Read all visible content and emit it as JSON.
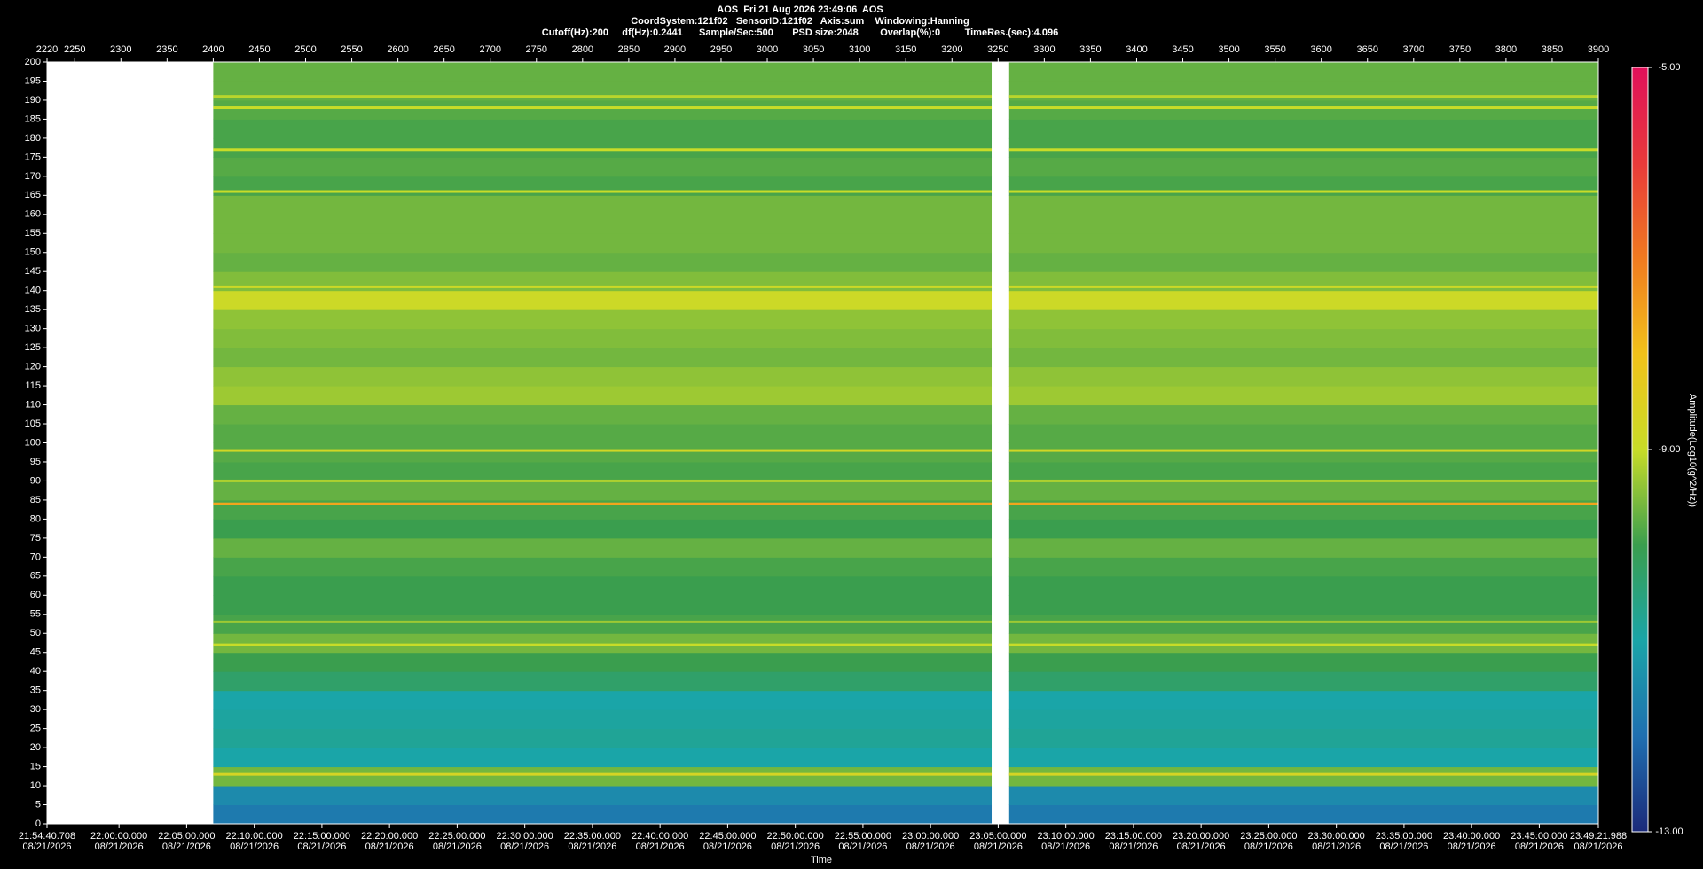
{
  "chart_data": {
    "type": "spectrogram",
    "header": [
      "AOS  Fri 21 Aug 2026 23:49:06  AOS",
      "CoordSystem:121f02   SensorID:121f02   Axis:sum    Windowing:Hanning",
      "Cutoff(Hz):200     df(Hz):0.2441      Sample/Sec:500       PSD size:2048        Overlap(%):0         TimeRes.(sec):4.096"
    ],
    "x_label": "Time",
    "colorbar_label": "Amplitude(Log10(g^2/Hz))",
    "xlim": [
      2220,
      3900
    ],
    "xticks": [
      2220,
      2250,
      2300,
      2350,
      2400,
      2450,
      2500,
      2550,
      2600,
      2650,
      2700,
      2750,
      2800,
      2850,
      2900,
      2950,
      3000,
      3050,
      3100,
      3150,
      3200,
      3250,
      3300,
      3350,
      3400,
      3450,
      3500,
      3550,
      3600,
      3650,
      3700,
      3750,
      3800,
      3850,
      3900
    ],
    "x2lim": [
      78880.708,
      85761.988
    ],
    "x2ticks": [
      {
        "value": 78880.708,
        "label": "21:54:40.708",
        "date": "08/21/2026"
      },
      {
        "value": 79200,
        "label": "22:00:00.000",
        "date": "08/21/2026"
      },
      {
        "value": 79500,
        "label": "22:05:00.000",
        "date": "08/21/2026"
      },
      {
        "value": 79800,
        "label": "22:10:00.000",
        "date": "08/21/2026"
      },
      {
        "value": 80100,
        "label": "22:15:00.000",
        "date": "08/21/2026"
      },
      {
        "value": 80400,
        "label": "22:20:00.000",
        "date": "08/21/2026"
      },
      {
        "value": 80700,
        "label": "22:25:00.000",
        "date": "08/21/2026"
      },
      {
        "value": 81000,
        "label": "22:30:00.000",
        "date": "08/21/2026"
      },
      {
        "value": 81300,
        "label": "22:35:00.000",
        "date": "08/21/2026"
      },
      {
        "value": 81600,
        "label": "22:40:00.000",
        "date": "08/21/2026"
      },
      {
        "value": 81900,
        "label": "22:45:00.000",
        "date": "08/21/2026"
      },
      {
        "value": 82200,
        "label": "22:50:00.000",
        "date": "08/21/2026"
      },
      {
        "value": 82500,
        "label": "22:55:00.000",
        "date": "08/21/2026"
      },
      {
        "value": 82800,
        "label": "23:00:00.000",
        "date": "08/21/2026"
      },
      {
        "value": 83100,
        "label": "23:05:00.000",
        "date": "08/21/2026"
      },
      {
        "value": 83400,
        "label": "23:10:00.000",
        "date": "08/21/2026"
      },
      {
        "value": 83700,
        "label": "23:15:00.000",
        "date": "08/21/2026"
      },
      {
        "value": 84000,
        "label": "23:20:00.000",
        "date": "08/21/2026"
      },
      {
        "value": 84300,
        "label": "23:25:00.000",
        "date": "08/21/2026"
      },
      {
        "value": 84600,
        "label": "23:30:00.000",
        "date": "08/21/2026"
      },
      {
        "value": 84900,
        "label": "23:35:00.000",
        "date": "08/21/2026"
      },
      {
        "value": 85200,
        "label": "23:40:00.000",
        "date": "08/21/2026"
      },
      {
        "value": 85500,
        "label": "23:45:00.000",
        "date": "08/21/2026"
      },
      {
        "value": 85761.988,
        "label": "23:49:21.988",
        "date": "08/21/2026"
      }
    ],
    "ylim": [
      0,
      200
    ],
    "yticks": [
      0,
      5,
      10,
      15,
      20,
      25,
      30,
      35,
      40,
      45,
      50,
      55,
      60,
      65,
      70,
      75,
      80,
      85,
      90,
      95,
      100,
      105,
      110,
      115,
      120,
      125,
      130,
      135,
      140,
      145,
      150,
      155,
      160,
      165,
      170,
      175,
      180,
      185,
      190,
      195,
      200
    ],
    "clim": [
      -13,
      -5
    ],
    "cticks": [
      {
        "value": -5,
        "label": "-5.00"
      },
      {
        "value": -9,
        "label": "-9.00"
      },
      {
        "value": -13,
        "label": "-13.00"
      }
    ],
    "colormap": [
      "#1b2a7a",
      "#1f6fb0",
      "#1aa5a8",
      "#3a9e4e",
      "#c8dc28",
      "#f2c21a",
      "#f07a20",
      "#e83a3a",
      "#e0105a"
    ],
    "segments": [
      [
        2400,
        3243
      ],
      [
        3262,
        3900
      ]
    ],
    "frequency_bins": [
      0,
      5,
      10,
      15,
      20,
      25,
      30,
      35,
      40,
      45,
      50,
      55,
      60,
      65,
      70,
      75,
      80,
      85,
      90,
      95,
      100,
      105,
      110,
      115,
      120,
      125,
      130,
      135,
      140,
      145,
      150,
      155,
      160,
      165,
      170,
      175,
      180,
      185,
      190,
      195,
      200
    ],
    "amplitude": [
      -11.8,
      -11.5,
      -9.6,
      -11,
      -10.8,
      -10.9,
      -11,
      -10.3,
      -10,
      -9.6,
      -9.9,
      -10,
      -10,
      -9.9,
      -9.7,
      -10,
      -9.9,
      -9.7,
      -9.9,
      -9.8,
      -9.8,
      -9.7,
      -9.3,
      -9.4,
      -9.6,
      -9.5,
      -9.4,
      -8.9,
      -9.5,
      -9.7,
      -9.6,
      -9.6,
      -9.6,
      -9.9,
      -9.8,
      -9.9,
      -9.9,
      -9.8,
      -9.7,
      -9.7
    ],
    "lines": [
      {
        "frequency": 13,
        "amplitude": -8.7
      },
      {
        "frequency": 47,
        "amplitude": -9
      },
      {
        "frequency": 53,
        "amplitude": -9.3
      },
      {
        "frequency": 84,
        "amplitude": -7.6
      },
      {
        "frequency": 90,
        "amplitude": -9.2
      },
      {
        "frequency": 98,
        "amplitude": -8.8
      },
      {
        "frequency": 141,
        "amplitude": -8.9
      },
      {
        "frequency": 166,
        "amplitude": -9
      },
      {
        "frequency": 177,
        "amplitude": -9
      },
      {
        "frequency": 188,
        "amplitude": -9
      },
      {
        "frequency": 191,
        "amplitude": -9.1
      }
    ]
  }
}
